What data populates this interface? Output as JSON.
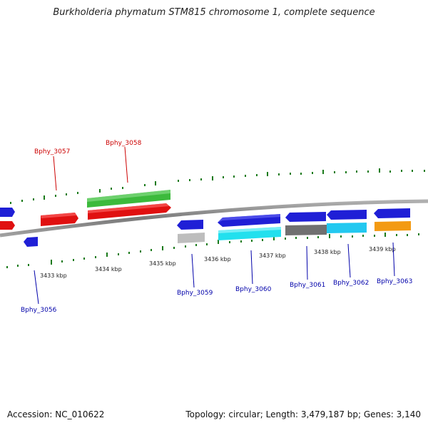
{
  "title": "Burkholderia phymatum STM815 chromosome 1, complete sequence",
  "footer": {
    "accession": "Accession: NC_010622",
    "summary": "Topology: circular; Length: 3,479,187 bp; Genes: 3,140"
  },
  "colors": {
    "forward_label": "#cc0000",
    "reverse_label": "#0000aa",
    "tick": "#1a7a1a",
    "backbone": "#8a8a8a",
    "blue": "#1f1fd6",
    "red": "#e01010",
    "green": "#3cba3c",
    "cyan": "#22e0ee",
    "grey": "#bdbdbd",
    "darkgrey": "#707070",
    "skyblue": "#22c8f0",
    "orange": "#f39a12"
  },
  "scale_labels": [
    "3433 kbp",
    "3434 kbp",
    "3435 kbp",
    "3436 kbp",
    "3437 kbp",
    "3438 kbp",
    "3439 kbp"
  ],
  "gene_labels": {
    "forward": [
      "Bphy_3057",
      "Bphy_3058"
    ],
    "reverse": [
      "Bphy_3056",
      "Bphy_3059",
      "Bphy_3060",
      "Bphy_3061",
      "Bphy_3062",
      "Bphy_3063"
    ]
  }
}
